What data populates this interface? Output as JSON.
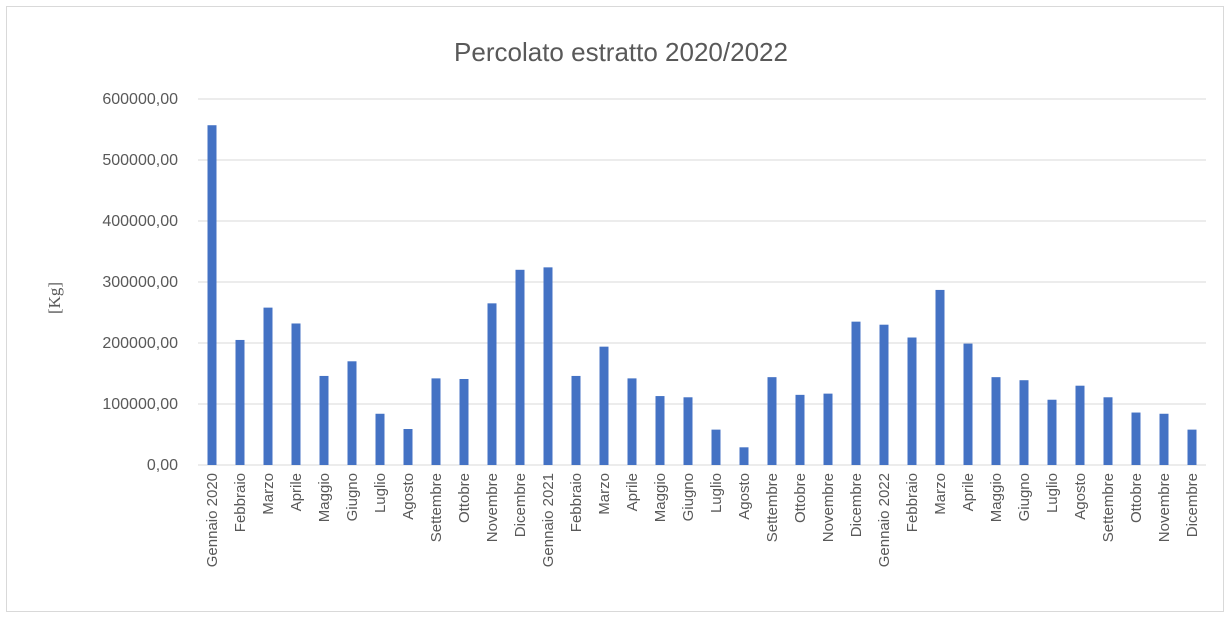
{
  "chart_data": {
    "type": "bar",
    "title": "Percolato estratto 2020/2022",
    "xlabel": "",
    "ylabel": "[Kg]",
    "ylim": [
      0,
      600000
    ],
    "yticks": [
      "0,00",
      "100000,00",
      "200000,00",
      "300000,00",
      "400000,00",
      "500000,00",
      "600000,00"
    ],
    "grid": true,
    "legend": "none",
    "bar_color": "#4472c4",
    "categories": [
      "Gennaio 2020",
      "Febbraio",
      "Marzo",
      "Aprile",
      "Maggio",
      "Giugno",
      "Luglio",
      "Agosto",
      "Settembre",
      "Ottobre",
      "Novembre",
      "Dicembre",
      "Gennaio 2021",
      "Febbraio",
      "Marzo",
      "Aprile",
      "Maggio",
      "Giugno",
      "Luglio",
      "Agosto",
      "Settembre",
      "Ottobre",
      "Novembre",
      "Dicembre",
      "Gennaio 2022",
      "Febbraio",
      "Marzo",
      "Aprile",
      "Maggio",
      "Giugno",
      "Luglio",
      "Agosto",
      "Settembre",
      "Ottobre",
      "Novembre",
      "Dicembre"
    ],
    "values": [
      557000,
      205000,
      258000,
      232000,
      146000,
      170000,
      84000,
      59000,
      142000,
      141000,
      265000,
      320000,
      324000,
      146000,
      194000,
      142000,
      113000,
      111000,
      58000,
      29000,
      144000,
      115000,
      117000,
      235000,
      230000,
      209000,
      287000,
      199000,
      144000,
      139000,
      107000,
      130000,
      111000,
      86000,
      84000,
      58000
    ]
  }
}
